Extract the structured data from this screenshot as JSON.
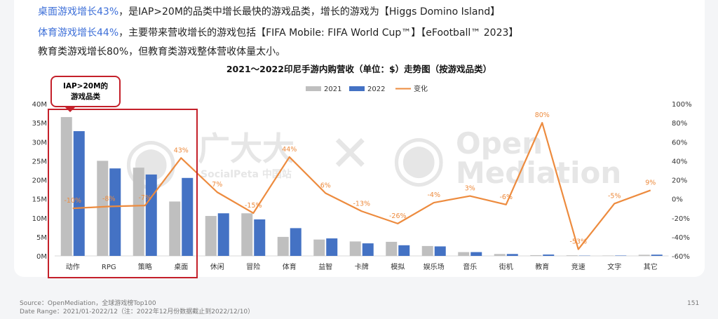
{
  "header": {
    "line1_hl": "桌面游戏增长43%",
    "line1_rest": "，是IAP>20M的品类中增长最快的游戏品类，增长的游戏为【Higgs Domino Island】",
    "line2_hl": "体育游戏增长44%",
    "line2_rest": "，主要带来营收增长的游戏包括【FIFA Mobile: FIFA World Cup™】【eFootball™ 2023】",
    "line3": "教育类游戏增长80%，但教育类游戏整体营收体量太小。"
  },
  "callout": {
    "line1": "IAP>20M的",
    "line2": "游戏品类"
  },
  "watermark": {
    "brand1": "广大大",
    "brand1_sub": "SocialPeta 中国站",
    "cross": "✕",
    "brand2_line1": "Open",
    "brand2_line2": "Mediation"
  },
  "footer": {
    "source": "Source：OpenMediation，全球游戏榜Top100",
    "date_range": "Date Range：2021/01-2022/12（注：2022年12月份数据截止到2022/12/10）",
    "page_number": "151"
  },
  "colors": {
    "y2021": "#bfbfbf",
    "y2022": "#4472c4",
    "change": "#ed8b3e",
    "highlight": "#c4202a",
    "accent_text": "#3d6fd8"
  },
  "chart_data": {
    "type": "bar",
    "title": "2021～2022印尼手游内购营收（单位：$）走势图（按游戏品类）",
    "categories": [
      "动作",
      "RPG",
      "策略",
      "桌面",
      "休闲",
      "冒险",
      "体育",
      "益智",
      "卡牌",
      "模拟",
      "娱乐场",
      "音乐",
      "街机",
      "教育",
      "竞速",
      "文字",
      "其它"
    ],
    "series": [
      {
        "name": "2021",
        "axis": "left",
        "values": [
          36.5,
          25,
          23.2,
          14.3,
          10.5,
          11.2,
          5,
          4.3,
          3.8,
          3.7,
          2.6,
          1,
          0.5,
          0.2,
          0.15,
          0.1,
          0.3
        ]
      },
      {
        "name": "2022",
        "axis": "left",
        "values": [
          32.8,
          23,
          21.4,
          20.5,
          11.2,
          9.6,
          7.3,
          4.6,
          3.3,
          2.8,
          2.5,
          1,
          0.5,
          0.36,
          0.07,
          0.1,
          0.33
        ]
      },
      {
        "name": "变化",
        "axis": "right",
        "type": "line",
        "values": [
          -10,
          -8,
          -7,
          43,
          7,
          -15,
          44,
          6,
          -13,
          -26,
          -4,
          3,
          -6,
          80,
          -53,
          -5,
          9
        ]
      }
    ],
    "change_labels": [
      "-10%",
      "-8%",
      "-7%",
      "43%",
      "7%",
      "-15%",
      "44%",
      "6%",
      "-13%",
      "-26%",
      "-4%",
      "3%",
      "-6%",
      "80%",
      "-53%",
      "-5%",
      "9%"
    ],
    "yaxis_left": {
      "ticks": [
        "0M",
        "5M",
        "10M",
        "15M",
        "20M",
        "25M",
        "30M",
        "35M",
        "40M"
      ],
      "range": [
        0,
        40
      ]
    },
    "yaxis_right": {
      "ticks": [
        "-60%",
        "-40%",
        "-20%",
        "0%",
        "20%",
        "40%",
        "60%",
        "80%",
        "100%"
      ],
      "range": [
        -60,
        100
      ]
    },
    "legend_position": "top-center",
    "grid": false
  }
}
